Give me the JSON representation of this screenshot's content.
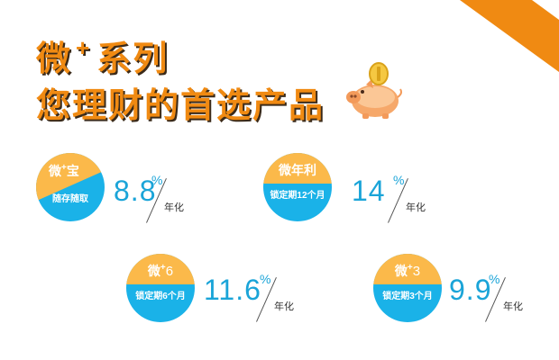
{
  "headline": {
    "line1_a": "微",
    "line1_plus": "+",
    "line1_b": "系列",
    "line2": "您理财的首选产品"
  },
  "decor": {
    "accent_color": "#f08a12",
    "circle_blue": "#1ab2e8",
    "circle_orange": "#fbb94a",
    "rate_color": "#1aa4d8",
    "mascot_icon": "piggy-bank-icon"
  },
  "products": [
    {
      "name": "微",
      "plus": "+",
      "name_suffix": "宝",
      "subtitle": "随存随取",
      "rate": "8.8",
      "percent": "%",
      "unit": "年化"
    },
    {
      "name": "微年利",
      "subtitle": "锁定期12个月",
      "rate": "14",
      "percent": "%",
      "unit": "年化"
    },
    {
      "name": "微",
      "plus": "+",
      "name_suffix": "6",
      "subtitle": "锁定期6个月",
      "rate": "11.6",
      "percent": "%",
      "unit": "年化"
    },
    {
      "name": "微",
      "plus": "+",
      "name_suffix": "3",
      "subtitle": "锁定期3个月",
      "rate": "9.9",
      "percent": "%",
      "unit": "年化"
    }
  ]
}
